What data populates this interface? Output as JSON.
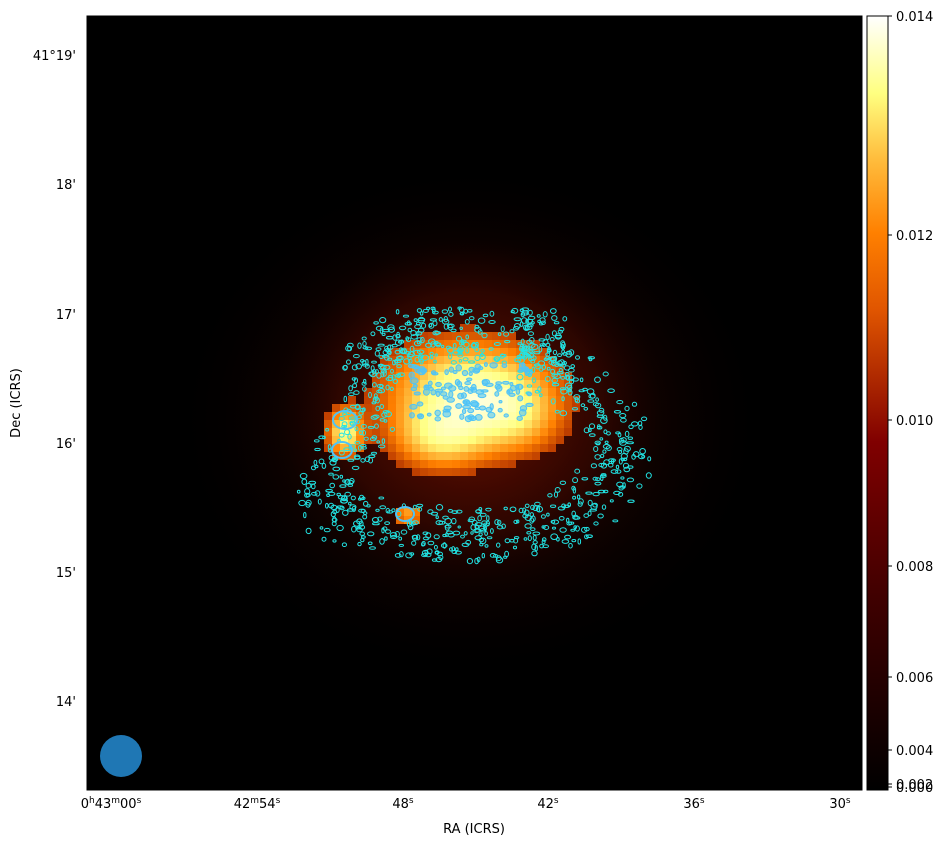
{
  "chart_data": {
    "type": "heatmap",
    "title": "",
    "xlabel": "RA (ICRS)",
    "ylabel": "Dec (ICRS)",
    "colormap": "afmhot",
    "contour_color": "#22e4e4",
    "contour_inner_color": "#4fc3f7",
    "beam_color": "#1f77b4",
    "x_ticks": [
      {
        "main": "0",
        "sup1": "h",
        "mid": "43",
        "sup2": "m",
        "sec": "00",
        "sup3": "s"
      },
      {
        "main": "",
        "sup1": "",
        "mid": "42",
        "sup2": "m",
        "sec": "54",
        "sup3": "s"
      },
      {
        "main": "",
        "sup1": "",
        "mid": "",
        "sup2": "",
        "sec": "48",
        "sup3": "s"
      },
      {
        "main": "",
        "sup1": "",
        "mid": "",
        "sup2": "",
        "sec": "42",
        "sup3": "s"
      },
      {
        "main": "",
        "sup1": "",
        "mid": "",
        "sup2": "",
        "sec": "36",
        "sup3": "s"
      },
      {
        "main": "",
        "sup1": "",
        "mid": "",
        "sup2": "",
        "sec": "30",
        "sup3": "s"
      }
    ],
    "y_ticks": [
      "41°19'",
      "18'",
      "17'",
      "16'",
      "15'",
      "14'"
    ],
    "colorbar": {
      "range": [
        0.0,
        0.014
      ],
      "ticks": [
        "0.014",
        "0.012",
        "0.010",
        "0.008",
        "0.006",
        "0.004",
        "0.002",
        "0.000"
      ]
    }
  }
}
